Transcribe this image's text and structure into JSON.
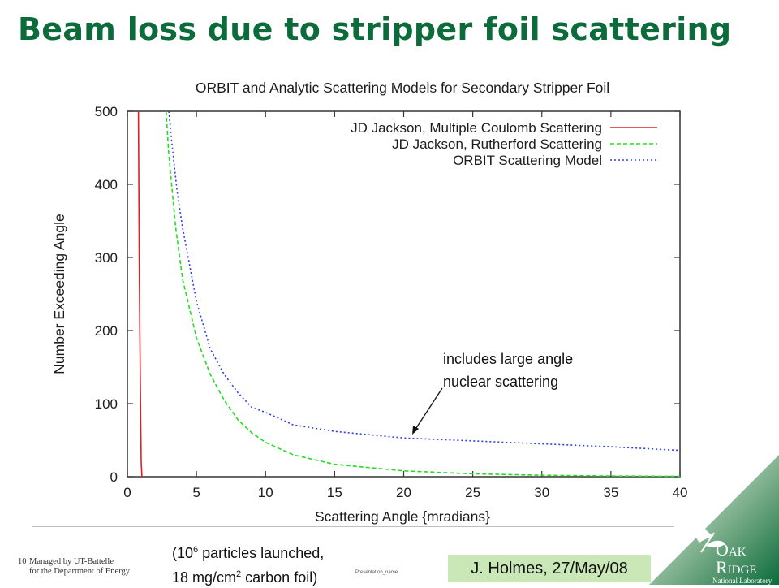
{
  "slide": {
    "title": "Beam loss due to stripper foil scattering",
    "annotation_line1": "includes large angle",
    "annotation_line2": "nuclear scattering",
    "note_prefix": "(10",
    "note_exp": "6",
    "note_line1_rest": " particles launched,",
    "note_line2_prefix": "18 mg/cm",
    "note_line2_exp": "2",
    "note_line2_rest": " carbon foil)",
    "credit": "J. Holmes, 27/May/08",
    "page_number": "10",
    "footer_line1": "Managed by UT-Battelle",
    "footer_line2": "for the Department of Energy",
    "presentation_name": "Presentation_name",
    "logo_word1_initial": "O",
    "logo_word1_rest": "AK",
    "logo_word2_initial": "R",
    "logo_word2_rest": "IDGE",
    "logo_tagline": "National Laboratory",
    "brand_green": "#0b6b3a",
    "credit_bg": "#c9e7b7"
  },
  "chart_data": {
    "type": "line",
    "title": "ORBIT and Analytic Scattering Models for Secondary Stripper Foil",
    "xlabel": "Scattering Angle {mradians}",
    "ylabel": "Number Exceeding Angle",
    "xlim": [
      0,
      40
    ],
    "ylim": [
      0,
      500
    ],
    "xticks": [
      0,
      5,
      10,
      15,
      20,
      25,
      30,
      35,
      40
    ],
    "yticks": [
      0,
      100,
      200,
      300,
      400,
      500
    ],
    "legend_position": "top-right",
    "grid": false,
    "series": [
      {
        "name": "JD Jackson, Multiple Coulomb Scattering",
        "color": "#e02020",
        "dash": "solid",
        "x": [
          0.8,
          0.83,
          0.86,
          0.9,
          0.95,
          1.0,
          1.05
        ],
        "y": [
          500,
          400,
          300,
          200,
          100,
          20,
          0
        ]
      },
      {
        "name": "JD Jackson, Rutherford Scattering",
        "color": "#22dd22",
        "dash": "dashed",
        "x": [
          2.8,
          3.0,
          3.5,
          4.0,
          5.0,
          6.0,
          7.0,
          8.0,
          9.0,
          10.0,
          12.0,
          15.0,
          20.0,
          25.0,
          30.0,
          35.0,
          40.0
        ],
        "y": [
          500,
          440,
          340,
          270,
          190,
          140,
          105,
          78,
          60,
          47,
          30,
          17,
          8,
          4,
          2,
          1,
          0.5
        ]
      },
      {
        "name": "ORBIT Scattering Model",
        "color": "#3040e0",
        "dash": "dotted",
        "x": [
          3.0,
          3.2,
          3.6,
          4.0,
          5.0,
          6.0,
          7.0,
          8.0,
          9.0,
          10.0,
          12.0,
          15.0,
          20.0,
          25.0,
          30.0,
          35.0,
          40.0
        ],
        "y": [
          500,
          460,
          390,
          340,
          240,
          175,
          140,
          115,
          95,
          88,
          71,
          62,
          53,
          49,
          45,
          41,
          36
        ]
      }
    ]
  }
}
